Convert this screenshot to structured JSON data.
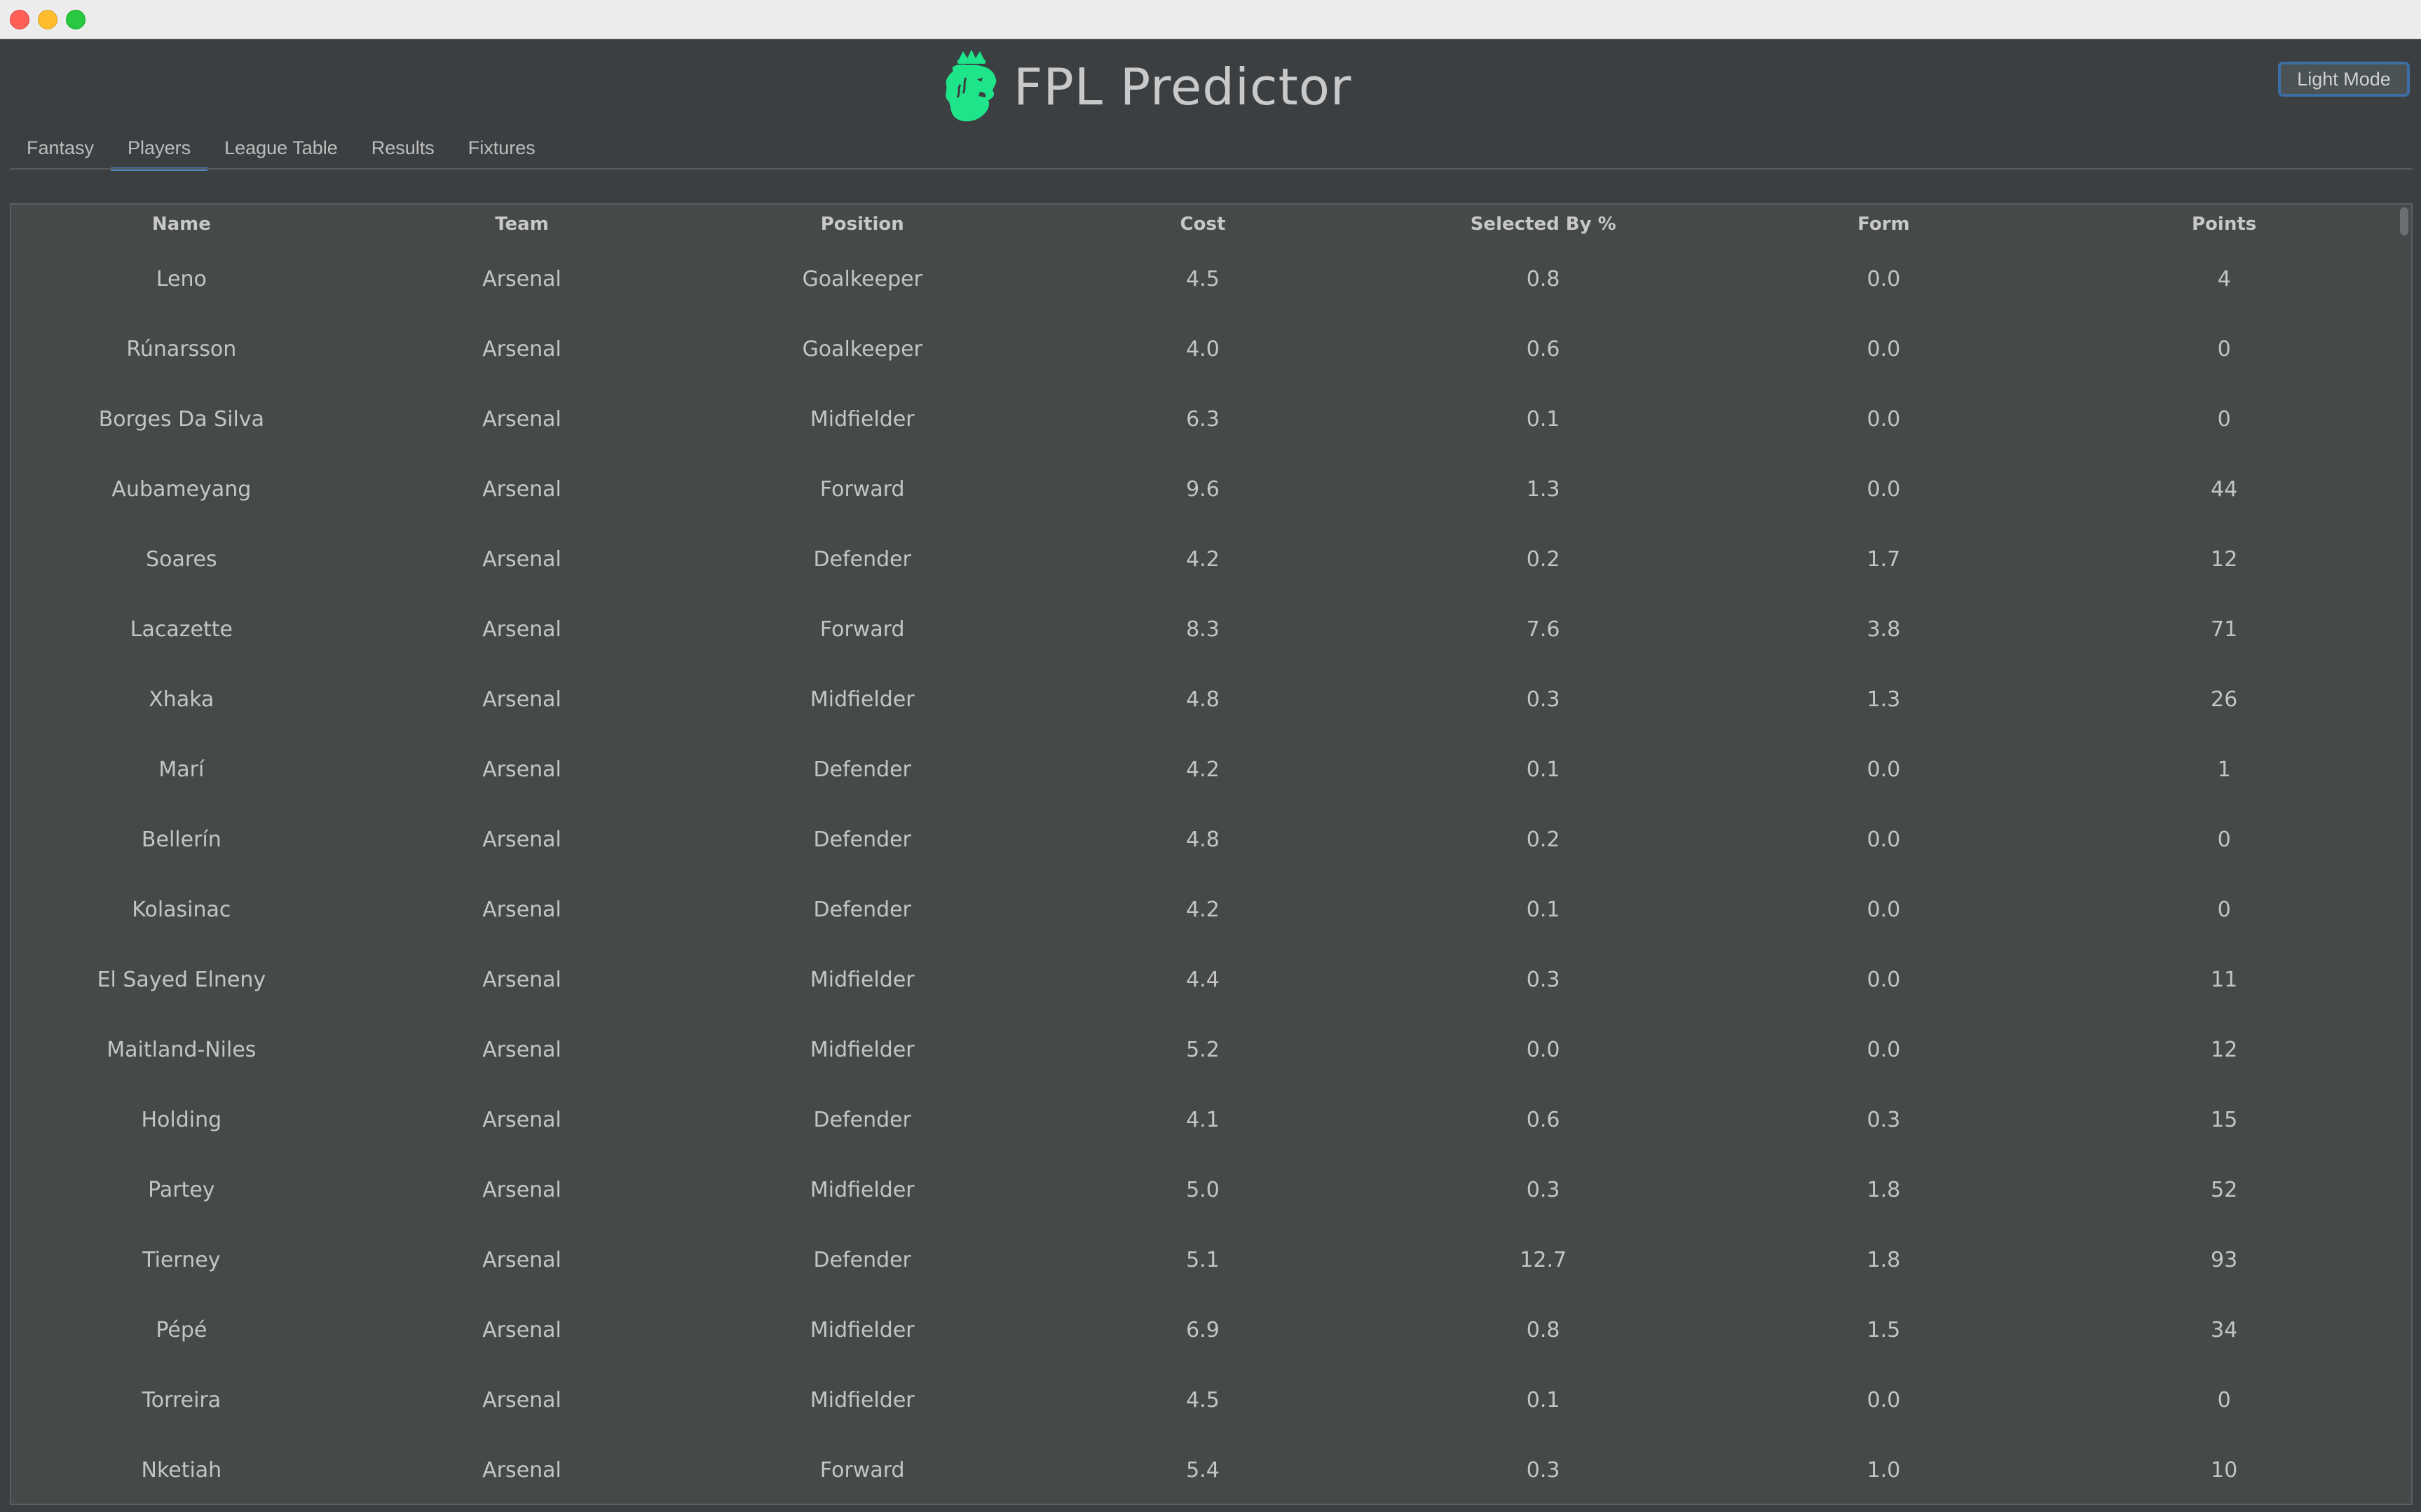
{
  "window": {
    "controls": [
      "close",
      "minimize",
      "maximize"
    ]
  },
  "header": {
    "title": "FPL Predictor",
    "logo_icon": "premier-league-lion-icon",
    "logo_color": "#1ee58a"
  },
  "mode_button": {
    "label": "Light Mode"
  },
  "tabs": [
    {
      "label": "Fantasy",
      "active": false
    },
    {
      "label": "Players",
      "active": true
    },
    {
      "label": "League Table",
      "active": false
    },
    {
      "label": "Results",
      "active": false
    },
    {
      "label": "Fixtures",
      "active": false
    }
  ],
  "table": {
    "columns": [
      "Name",
      "Team",
      "Position",
      "Cost",
      "Selected By %",
      "Form",
      "Points"
    ],
    "rows": [
      [
        "Leno",
        "Arsenal",
        "Goalkeeper",
        "4.5",
        "0.8",
        "0.0",
        "4"
      ],
      [
        "Rúnarsson",
        "Arsenal",
        "Goalkeeper",
        "4.0",
        "0.6",
        "0.0",
        "0"
      ],
      [
        "Borges Da Silva",
        "Arsenal",
        "Midfielder",
        "6.3",
        "0.1",
        "0.0",
        "0"
      ],
      [
        "Aubameyang",
        "Arsenal",
        "Forward",
        "9.6",
        "1.3",
        "0.0",
        "44"
      ],
      [
        "Soares",
        "Arsenal",
        "Defender",
        "4.2",
        "0.2",
        "1.7",
        "12"
      ],
      [
        "Lacazette",
        "Arsenal",
        "Forward",
        "8.3",
        "7.6",
        "3.8",
        "71"
      ],
      [
        "Xhaka",
        "Arsenal",
        "Midfielder",
        "4.8",
        "0.3",
        "1.3",
        "26"
      ],
      [
        "Marí",
        "Arsenal",
        "Defender",
        "4.2",
        "0.1",
        "0.0",
        "1"
      ],
      [
        "Bellerín",
        "Arsenal",
        "Defender",
        "4.8",
        "0.2",
        "0.0",
        "0"
      ],
      [
        "Kolasinac",
        "Arsenal",
        "Defender",
        "4.2",
        "0.1",
        "0.0",
        "0"
      ],
      [
        "El Sayed Elneny",
        "Arsenal",
        "Midfielder",
        "4.4",
        "0.3",
        "0.0",
        "11"
      ],
      [
        "Maitland-Niles",
        "Arsenal",
        "Midfielder",
        "5.2",
        "0.0",
        "0.0",
        "12"
      ],
      [
        "Holding",
        "Arsenal",
        "Defender",
        "4.1",
        "0.6",
        "0.3",
        "15"
      ],
      [
        "Partey",
        "Arsenal",
        "Midfielder",
        "5.0",
        "0.3",
        "1.8",
        "52"
      ],
      [
        "Tierney",
        "Arsenal",
        "Defender",
        "5.1",
        "12.7",
        "1.8",
        "93"
      ],
      [
        "Pépé",
        "Arsenal",
        "Midfielder",
        "6.9",
        "0.8",
        "1.5",
        "34"
      ],
      [
        "Torreira",
        "Arsenal",
        "Midfielder",
        "4.5",
        "0.1",
        "0.0",
        "0"
      ],
      [
        "Nketiah",
        "Arsenal",
        "Forward",
        "5.4",
        "0.3",
        "1.0",
        "10"
      ]
    ]
  }
}
